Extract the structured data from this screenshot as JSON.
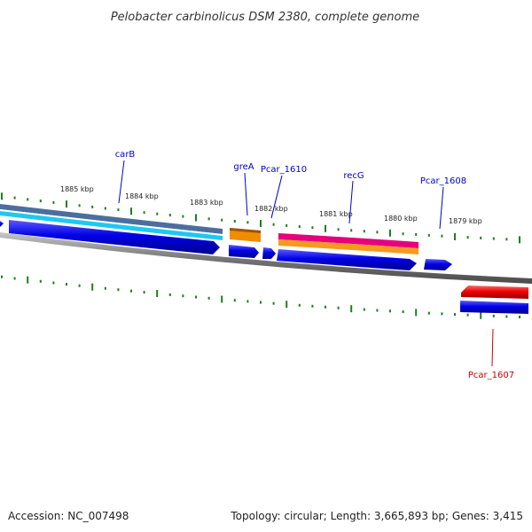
{
  "title": "Pelobacter carbinolicus DSM 2380, complete genome",
  "footer": {
    "accession": "Accession: NC_007498",
    "summary": "Topology: circular; Length: 3,665,893 bp; Genes: 3,415"
  },
  "scale_labels": [
    "1885 kbp",
    "1884 kbp",
    "1883 kbp",
    "1882 kbp",
    "1881 kbp",
    "1880 kbp",
    "1879 kbp"
  ],
  "gene_labels": [
    {
      "id": "carB",
      "text": "carB"
    },
    {
      "id": "greA",
      "text": "greA"
    },
    {
      "id": "Pcar_1610",
      "text": "Pcar_1610"
    },
    {
      "id": "recG",
      "text": "recG"
    },
    {
      "id": "Pcar_1608",
      "text": "Pcar_1608"
    },
    {
      "id": "Pcar_1607",
      "text": "Pcar_1607"
    }
  ],
  "colors": {
    "forward_cds": "#0000e6",
    "reverse_cds": "#ee0000",
    "backbone": "#808080",
    "tick": "#1e7e1e",
    "label_blue": "#0000cc",
    "label_red": "#cc0000",
    "carB_band_top": "#4a6f9e",
    "carB_band_bottom": "#1ec8f0",
    "greA_band": "#f08c00",
    "recG_band_top": "#e6007e",
    "recG_band_bottom": "#f59a1e"
  }
}
